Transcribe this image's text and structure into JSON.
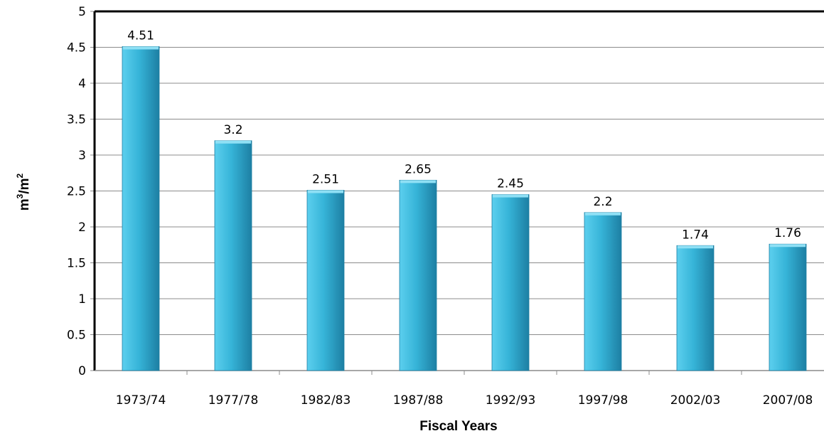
{
  "chart_data": {
    "type": "bar",
    "categories": [
      "1973/74",
      "1977/78",
      "1982/83",
      "1987/88",
      "1992/93",
      "1997/98",
      "2002/03",
      "2007/08"
    ],
    "values": [
      4.51,
      3.2,
      2.51,
      2.65,
      2.45,
      2.2,
      1.74,
      1.76
    ],
    "data_labels": [
      "4.51",
      "3.2",
      "2.51",
      "2.65",
      "2.45",
      "2.2",
      "1.74",
      "1.76"
    ],
    "xlabel": "Fiscal Years",
    "ylabel": {
      "base1": "m",
      "sup1": "3",
      "mid": "/m",
      "sup2": "2"
    },
    "ylim": [
      0,
      5
    ],
    "yticks": [
      "0",
      "0.5",
      "1",
      "1.5",
      "2",
      "2.5",
      "3",
      "3.5",
      "4",
      "4.5",
      "5"
    ],
    "grid": true,
    "legend": "none",
    "colors": {
      "bar_light": "#5ccfee",
      "bar_mid": "#36b4d8",
      "bar_dark": "#1d7fa3",
      "bar_top": "#8fe0f5",
      "grid": "#8c8c8c",
      "plot_border": "#000000"
    }
  }
}
